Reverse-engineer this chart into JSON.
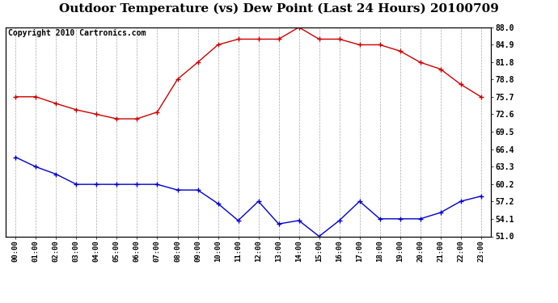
{
  "title": "Outdoor Temperature (vs) Dew Point (Last 24 Hours) 20100709",
  "copyright": "Copyright 2010 Cartronics.com",
  "x_labels": [
    "00:00",
    "01:00",
    "02:00",
    "03:00",
    "04:00",
    "05:00",
    "06:00",
    "07:00",
    "08:00",
    "09:00",
    "10:00",
    "11:00",
    "12:00",
    "13:00",
    "14:00",
    "15:00",
    "16:00",
    "17:00",
    "18:00",
    "19:00",
    "20:00",
    "21:00",
    "22:00",
    "23:00"
  ],
  "temp_data": [
    75.7,
    75.7,
    74.5,
    73.4,
    72.6,
    71.8,
    71.8,
    73.0,
    78.8,
    81.8,
    84.9,
    85.9,
    85.9,
    85.9,
    88.0,
    85.9,
    85.9,
    84.9,
    84.9,
    83.8,
    81.8,
    80.6,
    77.9,
    75.7
  ],
  "dew_data": [
    65.0,
    63.3,
    62.0,
    60.2,
    60.2,
    60.2,
    60.2,
    60.2,
    59.2,
    59.2,
    56.8,
    53.8,
    57.2,
    53.2,
    53.8,
    51.0,
    53.8,
    57.2,
    54.1,
    54.1,
    54.1,
    55.2,
    57.2,
    58.1
  ],
  "temp_color": "#cc0000",
  "dew_color": "#0000cc",
  "bg_color": "#ffffff",
  "plot_bg_color": "#ffffff",
  "grid_color": "#aaaaaa",
  "ylim": [
    51.0,
    88.0
  ],
  "yticks": [
    51.0,
    54.1,
    57.2,
    60.2,
    63.3,
    66.4,
    69.5,
    72.6,
    75.7,
    78.8,
    81.8,
    84.9,
    88.0
  ],
  "title_fontsize": 11,
  "copyright_fontsize": 7
}
